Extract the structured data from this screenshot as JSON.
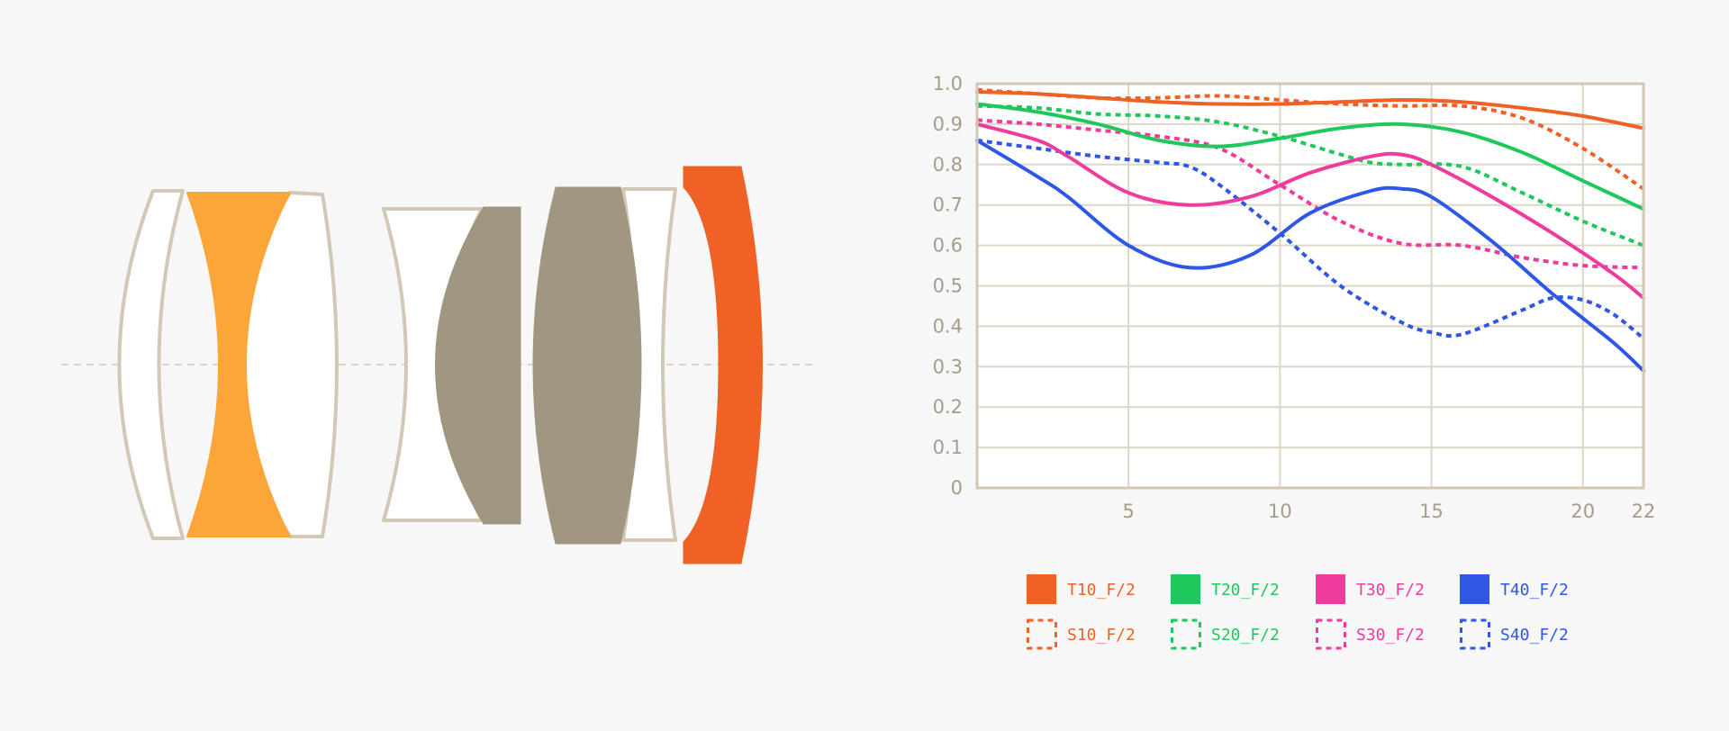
{
  "lens_diagram": {
    "optical_axis": "dashed",
    "elements": [
      {
        "name": "element-1",
        "fill": "#ffffff",
        "stroke": "#d2c8b6"
      },
      {
        "name": "element-2",
        "fill": "#fca63a",
        "stroke": "#fca63a"
      },
      {
        "name": "element-3",
        "fill": "#ffffff",
        "stroke": "#d2c8b6"
      },
      {
        "name": "element-4",
        "fill": "#ffffff",
        "stroke": "#d2c8b6"
      },
      {
        "name": "element-5",
        "fill": "#a19682",
        "stroke": "#a19682"
      },
      {
        "name": "element-6",
        "fill": "#a19682",
        "stroke": "#a19682"
      },
      {
        "name": "element-7",
        "fill": "#ffffff",
        "stroke": "#d2c8b6"
      },
      {
        "name": "element-8",
        "fill": "#ef6124",
        "stroke": "#ef6124"
      }
    ]
  },
  "chart_data": {
    "type": "line",
    "title": "",
    "xlabel": "",
    "ylabel": "",
    "xlim": [
      0,
      22
    ],
    "ylim": [
      0,
      1.0
    ],
    "x_ticks": [
      5,
      10,
      15,
      20,
      22
    ],
    "x_tick_labels": [
      "5",
      "10",
      "15",
      "20",
      "22"
    ],
    "y_ticks": [
      0,
      0.1,
      0.2,
      0.3,
      0.4,
      0.5,
      0.6,
      0.7,
      0.8,
      0.9,
      1.0
    ],
    "y_tick_labels": [
      "0",
      "0.1",
      "0.2",
      "0.3",
      "0.4",
      "0.5",
      "0.6",
      "0.7",
      "0.8",
      "0.9",
      "1.0"
    ],
    "grid": true,
    "legend_position": "bottom",
    "colors": {
      "axis": "#d2c8b6",
      "grid": "#ddd6c8",
      "tick_text": "#a59c8a",
      "plot_bg": "#ffffff"
    },
    "series": [
      {
        "name": "T10_F/2",
        "color": "#ef6124",
        "dashed": false,
        "x": [
          0,
          2,
          4,
          6,
          8,
          10,
          12,
          14,
          16,
          18,
          20,
          22
        ],
        "y": [
          0.98,
          0.975,
          0.965,
          0.955,
          0.95,
          0.95,
          0.955,
          0.96,
          0.955,
          0.94,
          0.92,
          0.89
        ]
      },
      {
        "name": "T20_F/2",
        "color": "#1fc85c",
        "dashed": false,
        "x": [
          0,
          2,
          4,
          6,
          8,
          10,
          12,
          14,
          16,
          18,
          20,
          22
        ],
        "y": [
          0.95,
          0.93,
          0.9,
          0.86,
          0.845,
          0.865,
          0.89,
          0.9,
          0.88,
          0.83,
          0.76,
          0.69
        ]
      },
      {
        "name": "T30_F/2",
        "color": "#ef3b9c",
        "dashed": false,
        "x": [
          0,
          2,
          3,
          5,
          7,
          9,
          11,
          13,
          14,
          15,
          17,
          19,
          21,
          22
        ],
        "y": [
          0.9,
          0.86,
          0.82,
          0.73,
          0.7,
          0.72,
          0.78,
          0.82,
          0.825,
          0.8,
          0.72,
          0.63,
          0.53,
          0.47
        ]
      },
      {
        "name": "T40_F/2",
        "color": "#2f57e6",
        "dashed": false,
        "x": [
          0,
          2,
          3,
          5,
          7,
          9,
          11,
          13,
          14,
          15,
          17,
          19,
          21,
          22
        ],
        "y": [
          0.86,
          0.77,
          0.72,
          0.6,
          0.545,
          0.575,
          0.68,
          0.735,
          0.74,
          0.72,
          0.61,
          0.48,
          0.36,
          0.29
        ]
      },
      {
        "name": "S10_F/2",
        "color": "#ef6124",
        "dashed": true,
        "x": [
          0,
          2,
          4,
          6,
          8,
          10,
          12,
          14,
          16,
          18,
          20,
          22
        ],
        "y": [
          0.985,
          0.975,
          0.965,
          0.965,
          0.97,
          0.96,
          0.95,
          0.945,
          0.945,
          0.915,
          0.84,
          0.74
        ]
      },
      {
        "name": "S20_F/2",
        "color": "#1fc85c",
        "dashed": true,
        "x": [
          0,
          2,
          4,
          6,
          8,
          10,
          12,
          13,
          14,
          16,
          18,
          20,
          22
        ],
        "y": [
          0.945,
          0.94,
          0.925,
          0.92,
          0.905,
          0.87,
          0.825,
          0.805,
          0.8,
          0.795,
          0.73,
          0.66,
          0.6
        ]
      },
      {
        "name": "S30_F/2",
        "color": "#ef3b9c",
        "dashed": true,
        "x": [
          0,
          2,
          4,
          6,
          8,
          10,
          12,
          14,
          16,
          18,
          20,
          22
        ],
        "y": [
          0.91,
          0.9,
          0.885,
          0.87,
          0.84,
          0.75,
          0.66,
          0.605,
          0.6,
          0.57,
          0.55,
          0.545
        ]
      },
      {
        "name": "S40_F/2",
        "color": "#2f57e6",
        "dashed": true,
        "x": [
          0,
          2,
          4,
          6,
          7,
          8,
          10,
          12,
          14,
          15,
          16,
          18,
          19,
          20,
          21,
          22
        ],
        "y": [
          0.86,
          0.84,
          0.82,
          0.805,
          0.795,
          0.75,
          0.63,
          0.5,
          0.41,
          0.385,
          0.38,
          0.44,
          0.47,
          0.465,
          0.43,
          0.37
        ]
      }
    ]
  }
}
